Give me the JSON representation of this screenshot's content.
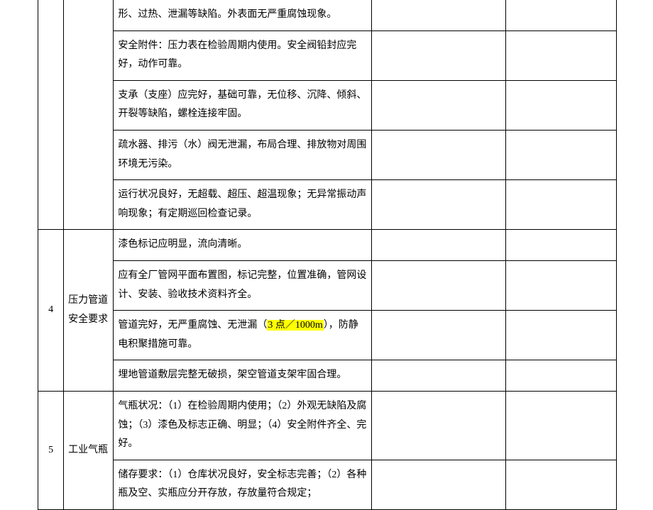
{
  "table": {
    "columns": {
      "num_width": 36,
      "cat_width": 70,
      "desc_width": 362,
      "blank1_width": 189,
      "blank2_width": 155
    },
    "font_size": 14,
    "line_height": 1.9,
    "border_color": "#000000",
    "highlight_color": "#ffff00",
    "row3": {
      "cells": [
        "形、过热、泄漏等缺陷。外表面无严重腐蚀现象。",
        "安全附件：压力表在检验周期内使用。安全阀铅封应完好，动作可靠。",
        "支承（支座）应完好，基础可靠，无位移、沉降、倾斜、开裂等缺陷，螺栓连接牢固。",
        "疏水器、排污（水）阀无泄漏，布局合理、排放物对周围环境无污染。",
        "运行状况良好，无超载、超压、超温现象；无异常振动声响现象；有定期巡回检查记录。"
      ]
    },
    "row4": {
      "num": "4",
      "category": "压力管道安全要求",
      "cells": [
        "漆色标记应明显，流向清晰。",
        "应有全厂管网平面布置图，标记完整，位置准确，管网设计、安装、验收技术资料齐全。",
        "埋地管道敷层完整无破损，架空管道支架牢固合理。"
      ],
      "cell_hl_prefix": "管道完好，无严重腐蚀、无泄漏（",
      "cell_hl_mark": "3 点／1000m",
      "cell_hl_suffix": "），防静电积聚措施可靠。"
    },
    "row5": {
      "num": "5",
      "category": "工业气瓶",
      "cells": [
        "气瓶状况：（1）在检验周期内使用；（2）外观无缺陷及腐蚀；（3）漆色及标志正确、明显；（4）安全附件齐全、完好。",
        "储存要求：（1）仓库状况良好，安全标志完善；（2）各种瓶及空、实瓶应分开存放，存放量符合规定；"
      ]
    }
  }
}
